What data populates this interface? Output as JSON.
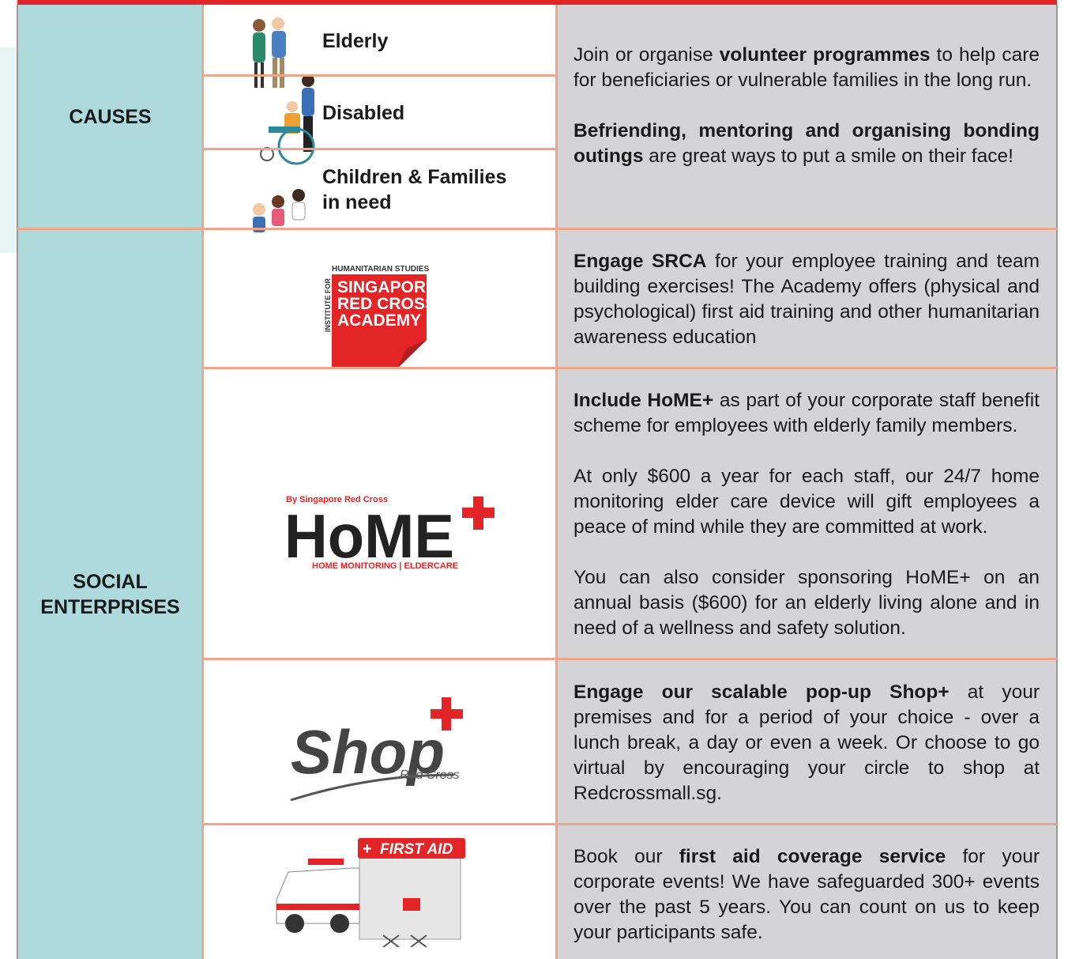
{
  "causes": {
    "label": "CAUSES",
    "items": [
      "Elderly",
      "Disabled",
      "Children & Families in need"
    ],
    "description": [
      [
        {
          "text": "Join or organise "
        },
        {
          "text": "volunteer programmes",
          "bold": true
        },
        {
          "text": " to help care for beneficiaries or vulnerable families in the long run."
        }
      ],
      [
        {
          "text": "Befriending, mentoring and organising bonding outings",
          "bold": true
        },
        {
          "text": " are great ways to put a smile on their face!"
        }
      ]
    ]
  },
  "social_enterprises": {
    "label": "SOCIAL ENTERPRISES",
    "rows": [
      {
        "logo": {
          "top": "HUMANITARIAN STUDIES",
          "side": "INSTITUTE FOR",
          "name": [
            "SINGAPORE",
            "RED CROSS",
            "ACADEMY"
          ]
        },
        "description": [
          [
            {
              "text": "Engage SRCA",
              "bold": true
            },
            {
              "text": " for your employee training and team building exercises! The Academy offers (physical and psychological) first aid training and other humanitarian awareness education"
            }
          ]
        ]
      },
      {
        "logo": {
          "top": "By Singapore Red Cross",
          "name": "HoME",
          "bottom": "HOME MONITORING | ELDERCARE"
        },
        "description": [
          [
            {
              "text": "Include HoME+",
              "bold": true
            },
            {
              "text": " as part of your corporate staff benefit scheme for employees with elderly family members."
            }
          ],
          [
            {
              "text": "At only $600 a year for each staff, our 24/7 home monitoring elder care device will gift employees a peace of mind while they are committed at work."
            }
          ],
          [
            {
              "text": "You can also consider sponsoring HoME+ on an annual basis ($600) for an elderly living alone and in need of a wellness and safety solution."
            }
          ]
        ]
      },
      {
        "logo": {
          "name": "Shop",
          "sub": "Red Cross"
        },
        "description": [
          [
            {
              "text": "Engage our scalable pop-up Shop+",
              "bold": true
            },
            {
              "text": " at your premises and for a period of your choice - over a lunch break, a day or even a week. Or choose to go virtual by encouraging your circle to shop at Redcrossmall.sg."
            }
          ]
        ]
      },
      {
        "logo": {
          "name": "FIRST AID"
        },
        "description": [
          [
            {
              "text": "Book our "
            },
            {
              "text": "first aid coverage service",
              "bold": true
            },
            {
              "text": " for your corporate events! We have safeguarded 300+ events over the past 5 years. You can count on us to keep your participants safe."
            }
          ]
        ]
      }
    ]
  }
}
